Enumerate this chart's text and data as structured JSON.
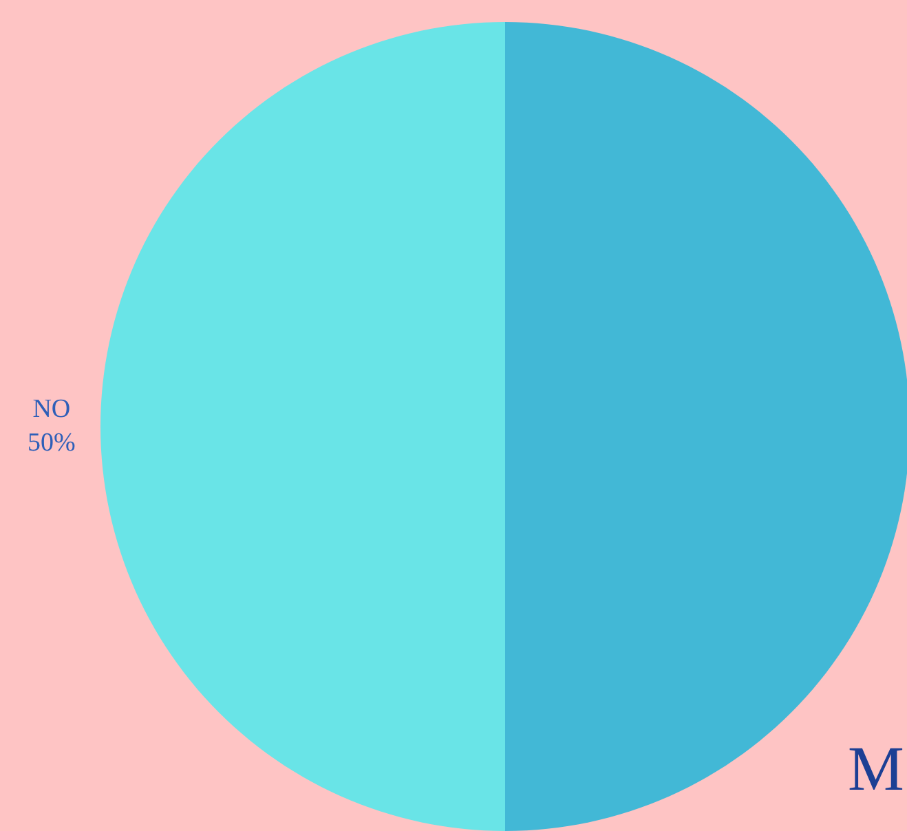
{
  "chart_data": {
    "type": "pie",
    "categories": [
      "NO",
      null
    ],
    "values": [
      50,
      50
    ],
    "value_labels": [
      "50%",
      null
    ],
    "colors": [
      "#69e4e7",
      "#42b8d6"
    ],
    "annotations": [
      "M"
    ]
  }
}
